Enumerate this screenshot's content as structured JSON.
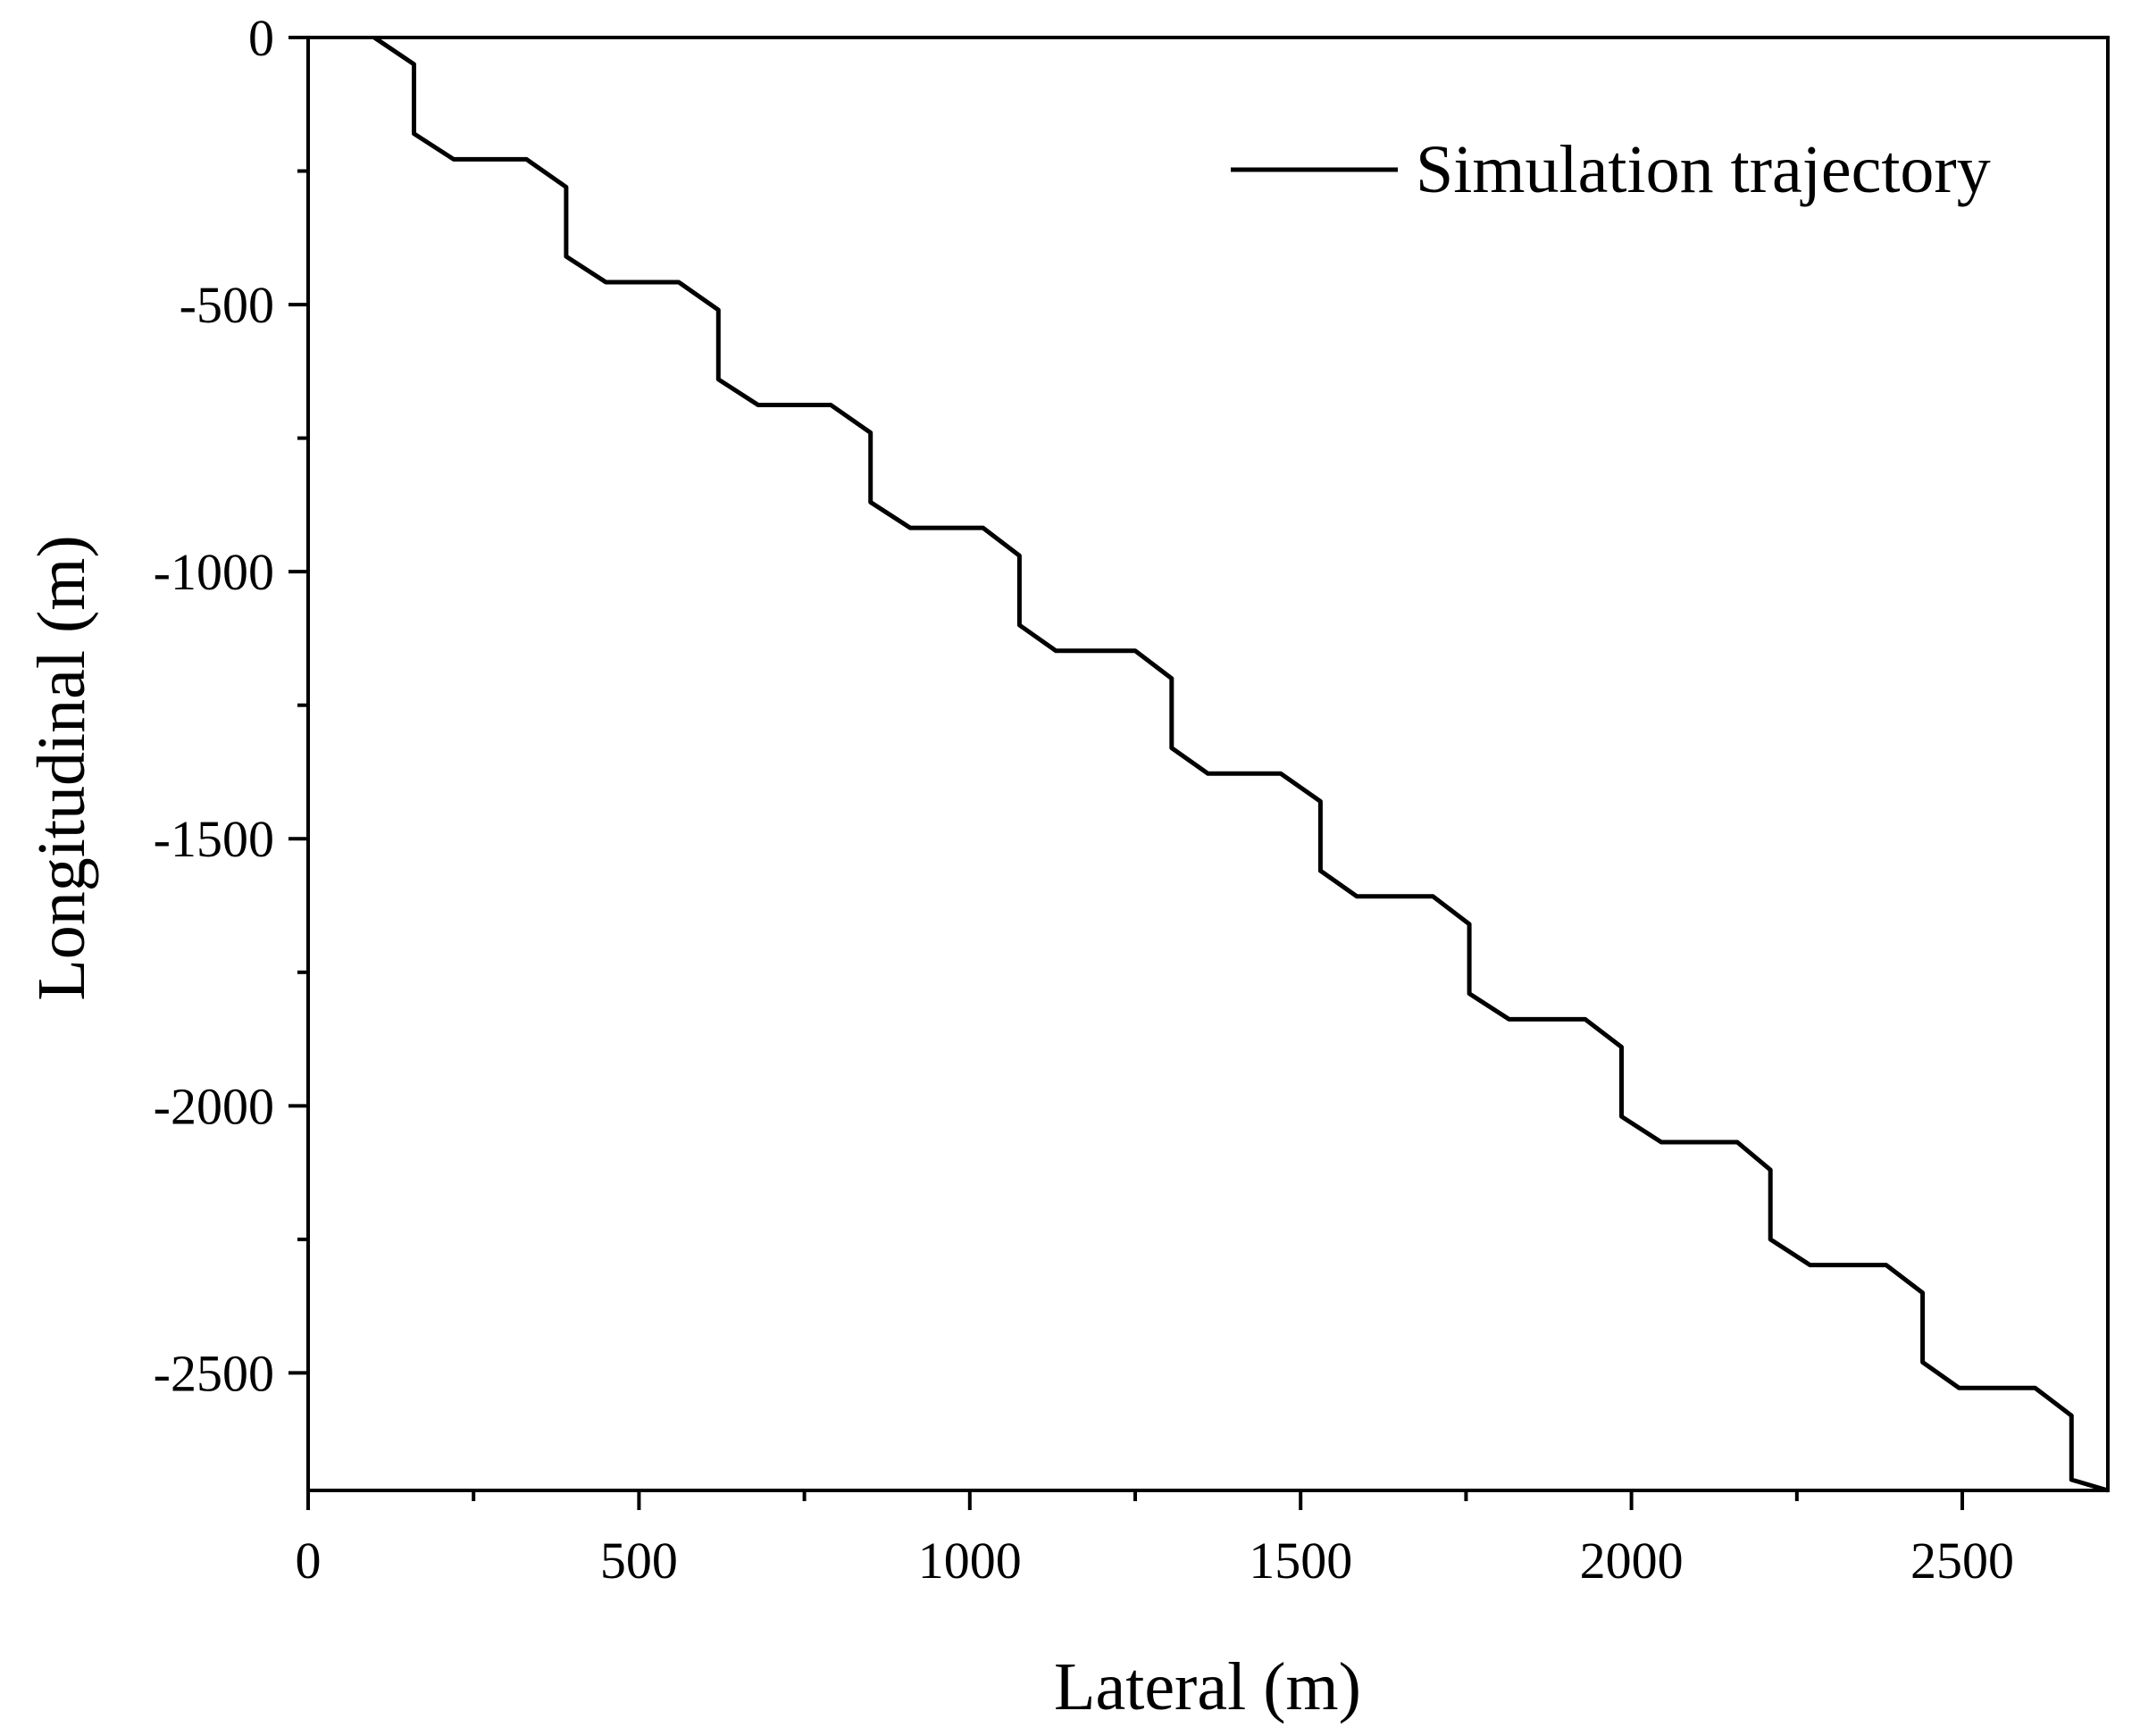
{
  "chart_data": {
    "type": "line",
    "title": "",
    "xlabel": "Lateral (m)",
    "ylabel": "Longitudinal (m)",
    "xlim": [
      0,
      2720
    ],
    "ylim": [
      -2720,
      0
    ],
    "x_ticks": [
      0,
      500,
      1000,
      1500,
      2000,
      2500
    ],
    "x_tick_labels": [
      "0",
      "500",
      "1000",
      "1500",
      "2000",
      "2500"
    ],
    "y_ticks": [
      0,
      -500,
      -1000,
      -1500,
      -2000,
      -2500
    ],
    "y_tick_labels": [
      "0",
      "-500",
      "-1000",
      "-1500",
      "-2000",
      "-2500"
    ],
    "grid": false,
    "legend": {
      "position": "top-right",
      "entries": [
        "Simulation trajectory"
      ]
    },
    "series": [
      {
        "name": "Simulation trajectory",
        "color": "#000000",
        "x": [
          100,
          160,
          160,
          220,
          330,
          390,
          390,
          450,
          560,
          620,
          620,
          680,
          790,
          850,
          850,
          910,
          1020,
          1075,
          1075,
          1130,
          1250,
          1305,
          1305,
          1360,
          1470,
          1530,
          1530,
          1585,
          1700,
          1755,
          1755,
          1815,
          1930,
          1985,
          1985,
          2045,
          2160,
          2210,
          2210,
          2270,
          2385,
          2440,
          2440,
          2495,
          2610,
          2665,
          2665,
          2720
        ],
        "y": [
          0,
          -50,
          -180,
          -228,
          -228,
          -280,
          -410,
          -458,
          -458,
          -510,
          -640,
          -688,
          -688,
          -740,
          -870,
          -918,
          -918,
          -970,
          -1100,
          -1148,
          -1148,
          -1200,
          -1330,
          -1378,
          -1378,
          -1430,
          -1560,
          -1608,
          -1608,
          -1660,
          -1790,
          -1838,
          -1838,
          -1890,
          -2020,
          -2068,
          -2068,
          -2120,
          -2250,
          -2298,
          -2298,
          -2350,
          -2480,
          -2528,
          -2528,
          -2580,
          -2700,
          -2740
        ]
      }
    ]
  }
}
